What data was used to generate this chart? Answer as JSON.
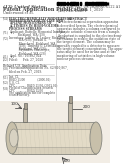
{
  "background_color": "#ffffff",
  "text_color": "#444444",
  "dark_text": "#222222",
  "barcode_color": "#000000",
  "diagram": {
    "bg": "#f0ece4",
    "cylinder_fill": "#d8d0bc",
    "cylinder_edge": "#888880",
    "cap_fill": "#c8c0aa",
    "port_fill": "#b0a898",
    "port_edge": "#666660",
    "inner_fill": "#e8e0cc",
    "label_color": "#333333"
  }
}
